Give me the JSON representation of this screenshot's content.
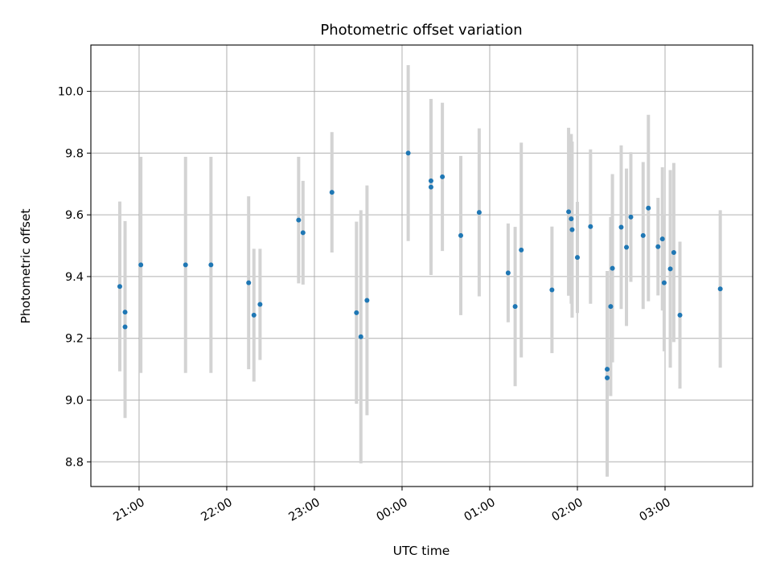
{
  "chart_data": {
    "type": "scatter",
    "title": "Photometric offset variation",
    "xlabel": "UTC time",
    "ylabel": "Photometric offset",
    "grid": true,
    "xlim": [
      -3.55,
      4.0
    ],
    "ylim": [
      8.72,
      10.15
    ],
    "x_unit": "hours relative to 00:00 UTC",
    "xticks": [
      {
        "value": -3.0,
        "label": "21:00"
      },
      {
        "value": -2.0,
        "label": "22:00"
      },
      {
        "value": -1.0,
        "label": "23:00"
      },
      {
        "value": 0.0,
        "label": "00:00"
      },
      {
        "value": 1.0,
        "label": "01:00"
      },
      {
        "value": 2.0,
        "label": "02:00"
      },
      {
        "value": 3.0,
        "label": "03:00"
      }
    ],
    "yticks": [
      {
        "value": 8.8,
        "label": "8.8"
      },
      {
        "value": 9.0,
        "label": "9.0"
      },
      {
        "value": 9.2,
        "label": "9.2"
      },
      {
        "value": 9.4,
        "label": "9.4"
      },
      {
        "value": 9.6,
        "label": "9.6"
      },
      {
        "value": 9.8,
        "label": "9.8"
      },
      {
        "value": 10.0,
        "label": "10.0"
      }
    ],
    "marker_color": "#1f77b4",
    "errorbar_color": "#d3d3d3",
    "points": [
      {
        "x": -3.22,
        "y": 9.368,
        "err": 0.275
      },
      {
        "x": -3.16,
        "y": 9.285,
        "err": 0.295
      },
      {
        "x": -3.16,
        "y": 9.237,
        "err": 0.295
      },
      {
        "x": -2.98,
        "y": 9.438,
        "err": 0.35
      },
      {
        "x": -2.47,
        "y": 9.438,
        "err": 0.35
      },
      {
        "x": -2.18,
        "y": 9.438,
        "err": 0.35
      },
      {
        "x": -1.75,
        "y": 9.38,
        "err": 0.28
      },
      {
        "x": -1.69,
        "y": 9.275,
        "err": 0.215
      },
      {
        "x": -1.62,
        "y": 9.31,
        "err": 0.18
      },
      {
        "x": -1.18,
        "y": 9.583,
        "err": 0.205
      },
      {
        "x": -1.13,
        "y": 9.542,
        "err": 0.168
      },
      {
        "x": -0.8,
        "y": 9.673,
        "err": 0.195
      },
      {
        "x": -0.52,
        "y": 9.283,
        "err": 0.295
      },
      {
        "x": -0.47,
        "y": 9.205,
        "err": 0.41
      },
      {
        "x": -0.4,
        "y": 9.323,
        "err": 0.372
      },
      {
        "x": 0.07,
        "y": 9.8,
        "err": 0.285
      },
      {
        "x": 0.33,
        "y": 9.71,
        "err": 0.265
      },
      {
        "x": 0.33,
        "y": 9.69,
        "err": 0.285
      },
      {
        "x": 0.46,
        "y": 9.723,
        "err": 0.24
      },
      {
        "x": 0.67,
        "y": 9.533,
        "err": 0.258
      },
      {
        "x": 0.88,
        "y": 9.608,
        "err": 0.272
      },
      {
        "x": 1.21,
        "y": 9.412,
        "err": 0.16
      },
      {
        "x": 1.29,
        "y": 9.303,
        "err": 0.258
      },
      {
        "x": 1.36,
        "y": 9.486,
        "err": 0.348
      },
      {
        "x": 1.71,
        "y": 9.357,
        "err": 0.205
      },
      {
        "x": 1.9,
        "y": 9.61,
        "err": 0.272
      },
      {
        "x": 1.93,
        "y": 9.587,
        "err": 0.275
      },
      {
        "x": 1.94,
        "y": 9.552,
        "err": 0.285
      },
      {
        "x": 2.0,
        "y": 9.462,
        "err": 0.18
      },
      {
        "x": 2.15,
        "y": 9.562,
        "err": 0.25
      },
      {
        "x": 2.34,
        "y": 9.1,
        "err": 0.318
      },
      {
        "x": 2.34,
        "y": 9.072,
        "err": 0.32
      },
      {
        "x": 2.38,
        "y": 9.303,
        "err": 0.29
      },
      {
        "x": 2.4,
        "y": 9.427,
        "err": 0.305
      },
      {
        "x": 2.5,
        "y": 9.56,
        "err": 0.265
      },
      {
        "x": 2.56,
        "y": 9.495,
        "err": 0.255
      },
      {
        "x": 2.61,
        "y": 9.593,
        "err": 0.21
      },
      {
        "x": 2.75,
        "y": 9.533,
        "err": 0.238
      },
      {
        "x": 2.81,
        "y": 9.622,
        "err": 0.302
      },
      {
        "x": 2.92,
        "y": 9.497,
        "err": 0.158
      },
      {
        "x": 2.97,
        "y": 9.522,
        "err": 0.232
      },
      {
        "x": 2.99,
        "y": 9.38,
        "err": 0.222
      },
      {
        "x": 3.06,
        "y": 9.425,
        "err": 0.32
      },
      {
        "x": 3.1,
        "y": 9.478,
        "err": 0.29
      },
      {
        "x": 3.17,
        "y": 9.275,
        "err": 0.238
      },
      {
        "x": 3.63,
        "y": 9.36,
        "err": 0.255
      }
    ]
  }
}
